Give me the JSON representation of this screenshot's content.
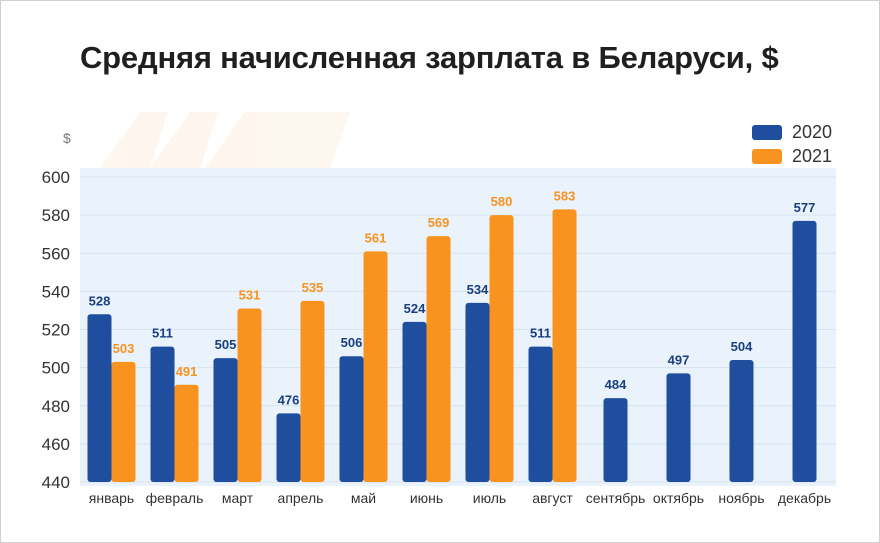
{
  "chart_data": {
    "type": "bar",
    "title": "Средняя начисленная зарплата в Беларуси, $",
    "ylabel": "$",
    "xlabel": "",
    "ylim": [
      440,
      600
    ],
    "yticks": [
      440,
      460,
      480,
      500,
      520,
      540,
      560,
      580,
      600
    ],
    "grid": true,
    "legend_position": "top-right",
    "categories": [
      "январь",
      "февраль",
      "март",
      "апрель",
      "май",
      "июнь",
      "июль",
      "август",
      "сентябрь",
      "октябрь",
      "ноябрь",
      "декабрь"
    ],
    "series": [
      {
        "name": "2020",
        "color": "#1f4e9e",
        "label_color": "#1a3f80",
        "values": [
          528,
          511,
          505,
          476,
          506,
          524,
          534,
          511,
          484,
          497,
          504,
          577
        ]
      },
      {
        "name": "2021",
        "color": "#f7931e",
        "label_color": "#f7931e",
        "values": [
          503,
          491,
          531,
          535,
          561,
          569,
          580,
          583,
          null,
          null,
          null,
          null
        ]
      }
    ]
  }
}
